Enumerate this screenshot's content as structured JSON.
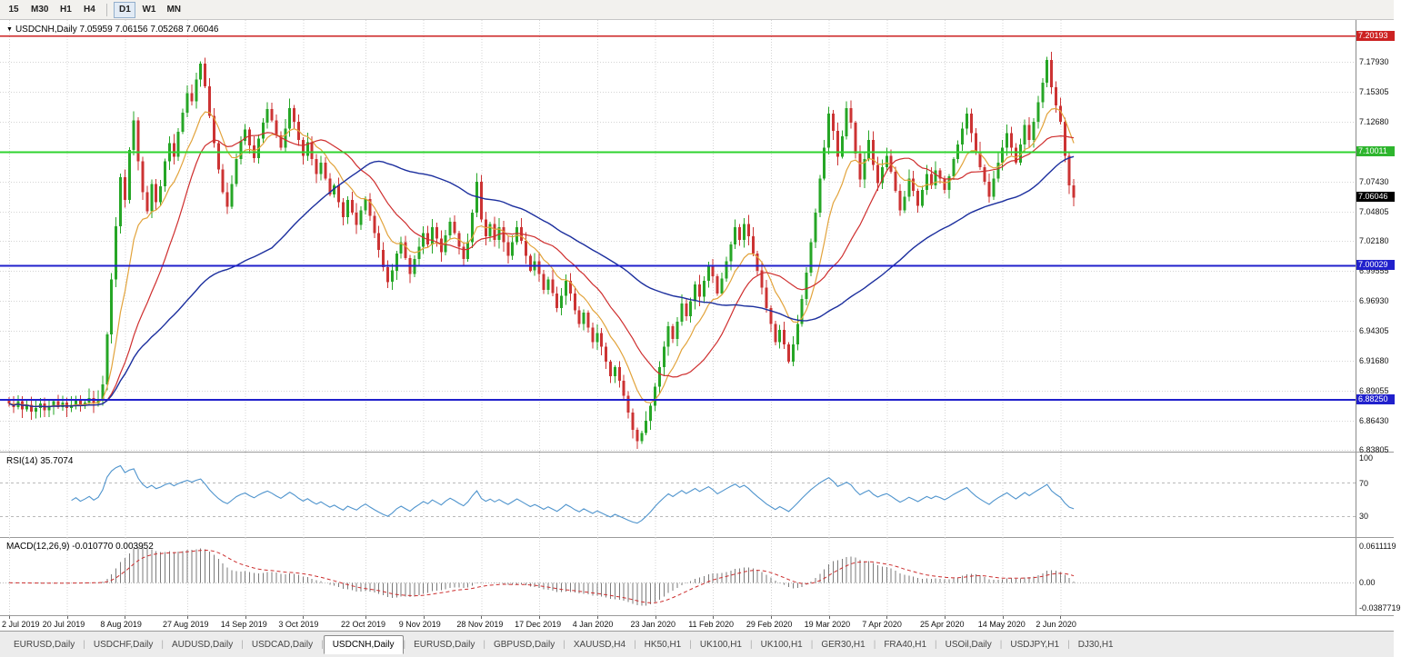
{
  "toolbar": {
    "timeframes": [
      {
        "label": "15",
        "active": false
      },
      {
        "label": "M30",
        "active": false
      },
      {
        "label": "H1",
        "active": false
      },
      {
        "label": "H4",
        "active": false
      },
      {
        "label": "D1",
        "active": true
      },
      {
        "label": "W1",
        "active": false
      },
      {
        "label": "MN",
        "active": false
      }
    ]
  },
  "chart_header": {
    "symbol": "USDCNH,Daily",
    "ohlc": "7.05959 7.06156 7.05268 7.06046"
  },
  "price_scale": {
    "ticks": [
      "7.17930",
      "7.15305",
      "7.12680",
      "7.07430",
      "7.04805",
      "7.02180",
      "6.99555",
      "6.96930",
      "6.94305",
      "6.91680",
      "6.89055",
      "6.86430",
      "6.83805"
    ],
    "badges": [
      {
        "value": "7.20193",
        "price": 7.20193,
        "color": "#cc2222"
      },
      {
        "value": "7.10011",
        "price": 7.10011,
        "color": "#2db52d"
      },
      {
        "value": "7.06046",
        "price": 7.06046,
        "color": "#000000"
      },
      {
        "value": "7.00029",
        "price": 7.00029,
        "color": "#2020cc"
      },
      {
        "value": "6.88250",
        "price": 6.8825,
        "color": "#2020cc"
      }
    ]
  },
  "rsi": {
    "label": "RSI(14) 35.7074",
    "period": 14,
    "current": "35.7074",
    "levels": [
      "100",
      "70",
      "30"
    ],
    "color": "#4f94cd"
  },
  "macd": {
    "label": "MACD(12,26,9) -0.010770 0.003952",
    "values": "-0.010770 0.003952",
    "scale_top": "0.0611119",
    "scale_zero": "0.00",
    "scale_bottom": "-0.0387719"
  },
  "tabs": [
    {
      "label": "EURUSD,Daily",
      "active": false
    },
    {
      "label": "USDCHF,Daily",
      "active": false
    },
    {
      "label": "AUDUSD,Daily",
      "active": false
    },
    {
      "label": "USDCAD,Daily",
      "active": false
    },
    {
      "label": "USDCNH,Daily",
      "active": true
    },
    {
      "label": "EURUSD,Daily",
      "active": false
    },
    {
      "label": "GBPUSD,Daily",
      "active": false
    },
    {
      "label": "XAUUSD,H4",
      "active": false
    },
    {
      "label": "HK50,H1",
      "active": false
    },
    {
      "label": "UK100,H1",
      "active": false
    },
    {
      "label": "UK100,H1",
      "active": false
    },
    {
      "label": "GER30,H1",
      "active": false
    },
    {
      "label": "FRA40,H1",
      "active": false
    },
    {
      "label": "USOil,Daily",
      "active": false
    },
    {
      "label": "USDJPY,H1",
      "active": false
    },
    {
      "label": "DJ30,H1",
      "active": false
    }
  ],
  "chart_data": {
    "type": "candlestick",
    "symbol": "USDCNH",
    "timeframe": "Daily",
    "price_range": [
      6.83805,
      7.21631
    ],
    "first_open": 6.882,
    "closes": [
      6.879,
      6.876,
      6.881,
      6.874,
      6.878,
      6.872,
      6.875,
      6.879,
      6.873,
      6.877,
      6.881,
      6.876,
      6.88,
      6.875,
      6.878,
      6.882,
      6.877,
      6.88,
      6.884,
      6.879,
      6.883,
      6.896,
      6.94,
      6.988,
      7.035,
      7.078,
      7.058,
      7.102,
      7.128,
      7.092,
      7.065,
      7.048,
      7.072,
      7.056,
      7.07,
      7.092,
      7.108,
      7.096,
      7.118,
      7.135,
      7.152,
      7.145,
      7.164,
      7.178,
      7.158,
      7.132,
      7.108,
      7.085,
      7.065,
      7.052,
      7.072,
      7.094,
      7.11,
      7.12,
      7.106,
      7.095,
      7.112,
      7.126,
      7.138,
      7.128,
      7.115,
      7.104,
      7.121,
      7.139,
      7.127,
      7.111,
      7.097,
      7.109,
      7.094,
      7.081,
      7.091,
      7.077,
      7.063,
      7.071,
      7.056,
      7.043,
      7.058,
      7.047,
      7.036,
      7.049,
      7.059,
      7.044,
      7.029,
      7.014,
      6.999,
      6.986,
      6.996,
      7.011,
      7.021,
      7.007,
      6.993,
      7.006,
      7.017,
      7.029,
      7.019,
      7.034,
      7.024,
      7.012,
      7.027,
      7.039,
      7.029,
      7.017,
      7.006,
      7.021,
      7.047,
      7.074,
      7.041,
      7.026,
      7.037,
      7.023,
      7.034,
      7.021,
      7.009,
      7.021,
      7.034,
      7.022,
      7.009,
      6.996,
      7.004,
      6.993,
      6.979,
      6.988,
      6.976,
      6.963,
      6.974,
      6.987,
      6.976,
      6.961,
      6.949,
      6.959,
      6.946,
      6.933,
      6.941,
      6.929,
      6.916,
      6.903,
      6.911,
      6.899,
      6.886,
      6.871,
      6.856,
      6.846,
      6.853,
      6.864,
      6.877,
      6.894,
      6.911,
      6.929,
      6.947,
      6.936,
      6.951,
      6.967,
      6.956,
      6.969,
      6.984,
      6.973,
      6.987,
      7.001,
      6.991,
      6.976,
      6.989,
      7.004,
      7.019,
      7.034,
      7.023,
      7.037,
      7.026,
      7.011,
      6.996,
      6.981,
      6.963,
      6.949,
      6.933,
      6.944,
      6.931,
      6.916,
      6.931,
      6.949,
      6.971,
      6.994,
      7.021,
      7.047,
      7.077,
      7.104,
      7.134,
      7.119,
      7.096,
      7.114,
      7.139,
      7.126,
      7.099,
      7.076,
      7.094,
      7.111,
      7.089,
      7.073,
      7.087,
      7.097,
      7.083,
      7.066,
      7.049,
      7.061,
      7.077,
      7.066,
      7.053,
      7.067,
      7.081,
      7.071,
      7.084,
      7.077,
      7.067,
      7.079,
      7.094,
      7.107,
      7.121,
      7.134,
      7.117,
      7.101,
      7.087,
      7.074,
      7.061,
      7.077,
      7.091,
      7.104,
      7.117,
      7.104,
      7.091,
      7.107,
      7.124,
      7.111,
      7.127,
      7.144,
      7.161,
      7.181,
      7.157,
      7.141,
      7.127,
      7.097,
      7.071,
      7.06
    ],
    "dates": [
      {
        "label": "2 Jul 2019",
        "i": 0
      },
      {
        "label": "20 Jul 2019",
        "i": 13
      },
      {
        "label": "8 Aug 2019",
        "i": 26
      },
      {
        "label": "27 Aug 2019",
        "i": 40
      },
      {
        "label": "14 Sep 2019",
        "i": 53
      },
      {
        "label": "3 Oct 2019",
        "i": 66
      },
      {
        "label": "22 Oct 2019",
        "i": 80
      },
      {
        "label": "9 Nov 2019",
        "i": 93
      },
      {
        "label": "28 Nov 2019",
        "i": 106
      },
      {
        "label": "17 Dec 2019",
        "i": 119
      },
      {
        "label": "4 Jan 2020",
        "i": 132
      },
      {
        "label": "23 Jan 2020",
        "i": 145
      },
      {
        "label": "11 Feb 2020",
        "i": 158
      },
      {
        "label": "29 Feb 2020",
        "i": 171
      },
      {
        "label": "19 Mar 2020",
        "i": 184
      },
      {
        "label": "7 Apr 2020",
        "i": 197
      },
      {
        "label": "25 Apr 2020",
        "i": 210
      },
      {
        "label": "14 May 2020",
        "i": 223
      },
      {
        "label": "2 Jun 2020",
        "i": 236
      }
    ],
    "hlines": [
      {
        "price": 7.20193,
        "color": "#cc2222",
        "width": 1.5
      },
      {
        "price": 7.10011,
        "color": "#2fd32f",
        "width": 2
      },
      {
        "price": 7.00029,
        "color": "#2020cc",
        "width": 2
      },
      {
        "price": 6.8825,
        "color": "#2020cc",
        "width": 2
      }
    ],
    "colors": {
      "up": "#26a626",
      "down": "#cc3333",
      "grid": "#d4d4d4",
      "ma_fast": "#e2a33b",
      "ma_mid": "#cf2e2e",
      "ma_slow": "#1c2f9e",
      "macd_hist": "#7a7a7a",
      "macd_signal": "#cc2e2e",
      "background": "#ffffff"
    }
  }
}
